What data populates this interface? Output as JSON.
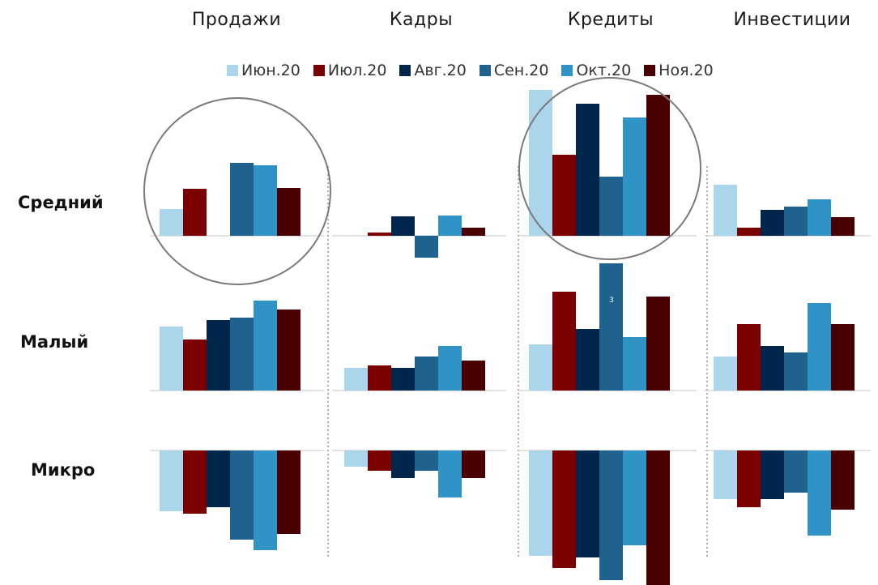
{
  "columns": [
    "Продажи",
    "Кадры",
    "Кредиты",
    "Инвестиции"
  ],
  "rows": [
    "Средний",
    "Малый",
    "Микро"
  ],
  "series_colors": [
    "#abd5ea",
    "#7b0000",
    "#00274b",
    "#1f628e",
    "#2f93c6",
    "#4a0000"
  ],
  "annotation_label": "3",
  "chart_data": {
    "type": "bar",
    "title": "",
    "categories": [
      "Июн.20",
      "Июл.20",
      "Авг.20",
      "Сен.20",
      "Окт.20",
      "Ноя.20"
    ],
    "legend_position": "top",
    "grid": false,
    "panels": [
      {
        "row": "Средний",
        "column": "Продажи",
        "values": [
          33,
          58,
          0,
          90,
          87,
          59
        ]
      },
      {
        "row": "Средний",
        "column": "Кадры",
        "values": [
          0,
          4,
          24,
          -27,
          25,
          10
        ]
      },
      {
        "row": "Средний",
        "column": "Кредиты",
        "values": [
          180,
          100,
          163,
          73,
          146,
          174
        ]
      },
      {
        "row": "Средний",
        "column": "Инвестиции",
        "values": [
          63,
          10,
          32,
          36,
          45,
          23
        ]
      },
      {
        "row": "Малый",
        "column": "Продажи",
        "values": [
          79,
          63,
          87,
          90,
          111,
          100
        ]
      },
      {
        "row": "Малый",
        "column": "Кадры",
        "values": [
          28,
          31,
          28,
          42,
          55,
          37
        ]
      },
      {
        "row": "Малый",
        "column": "Кредиты",
        "values": [
          57,
          122,
          76,
          157,
          66,
          116
        ]
      },
      {
        "row": "Малый",
        "column": "Инвестиции",
        "values": [
          42,
          82,
          55,
          47,
          108,
          82
        ]
      },
      {
        "row": "Микро",
        "column": "Продажи",
        "values": [
          -75,
          -78,
          -70,
          -110,
          -123,
          -103
        ]
      },
      {
        "row": "Микро",
        "column": "Кадры",
        "values": [
          -20,
          -25,
          -34,
          -25,
          -58,
          -34
        ]
      },
      {
        "row": "Микро",
        "column": "Кредиты",
        "values": [
          -130,
          -145,
          -132,
          -160,
          -117,
          -168
        ]
      },
      {
        "row": "Микро",
        "column": "Инвестиции",
        "values": [
          -60,
          -70,
          -60,
          -52,
          -105,
          -73
        ]
      }
    ]
  }
}
